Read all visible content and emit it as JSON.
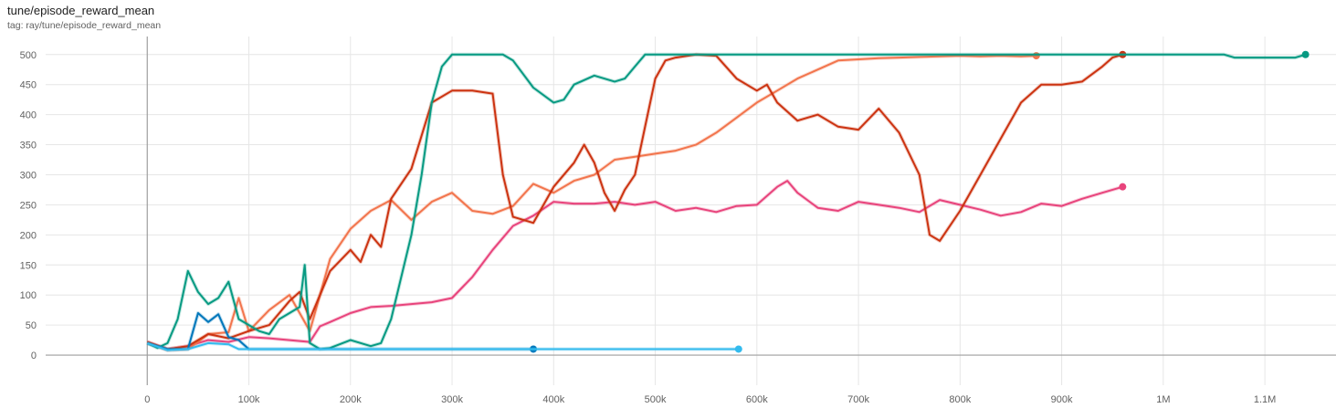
{
  "header": {
    "title": "tune/episode_reward_mean",
    "tag": "tag: ray/tune/episode_reward_mean"
  },
  "chart_data": {
    "type": "line",
    "title": "tune/episode_reward_mean",
    "xlabel": "",
    "ylabel": "",
    "xlim": [
      -100000,
      1170000
    ],
    "ylim": [
      -50,
      530
    ],
    "grid": true,
    "legend": "none",
    "x_ticks": [
      {
        "value": 0,
        "label": "0"
      },
      {
        "value": 100000,
        "label": "100k"
      },
      {
        "value": 200000,
        "label": "200k"
      },
      {
        "value": 300000,
        "label": "300k"
      },
      {
        "value": 400000,
        "label": "400k"
      },
      {
        "value": 500000,
        "label": "500k"
      },
      {
        "value": 600000,
        "label": "600k"
      },
      {
        "value": 700000,
        "label": "700k"
      },
      {
        "value": 800000,
        "label": "800k"
      },
      {
        "value": 900000,
        "label": "900k"
      },
      {
        "value": 1000000,
        "label": "1M"
      },
      {
        "value": 1100000,
        "label": "1.1M"
      }
    ],
    "y_ticks": [
      {
        "value": 0,
        "label": "0"
      },
      {
        "value": 50,
        "label": "50"
      },
      {
        "value": 100,
        "label": "100"
      },
      {
        "value": 150,
        "label": "150"
      },
      {
        "value": 200,
        "label": "200"
      },
      {
        "value": 250,
        "label": "250"
      },
      {
        "value": 300,
        "label": "300"
      },
      {
        "value": 350,
        "label": "350"
      },
      {
        "value": 400,
        "label": "400"
      },
      {
        "value": 450,
        "label": "450"
      },
      {
        "value": 500,
        "label": "500"
      }
    ],
    "series": [
      {
        "color": "#e8447c",
        "x": [
          0,
          20000,
          40000,
          60000,
          80000,
          100000,
          120000,
          140000,
          160000,
          170000,
          180000,
          200000,
          220000,
          240000,
          260000,
          280000,
          300000,
          320000,
          340000,
          360000,
          380000,
          400000,
          420000,
          440000,
          460000,
          480000,
          500000,
          520000,
          540000,
          560000,
          580000,
          600000,
          620000,
          630000,
          640000,
          660000,
          680000,
          700000,
          720000,
          740000,
          760000,
          780000,
          800000,
          820000,
          840000,
          860000,
          880000,
          900000,
          920000,
          940000,
          960000
        ],
        "y": [
          22,
          10,
          15,
          25,
          22,
          30,
          28,
          25,
          22,
          48,
          55,
          70,
          80,
          82,
          85,
          88,
          95,
          130,
          175,
          215,
          232,
          255,
          252,
          252,
          255,
          250,
          255,
          240,
          245,
          238,
          248,
          250,
          280,
          290,
          270,
          245,
          240,
          255,
          250,
          245,
          238,
          258,
          250,
          242,
          232,
          238,
          252,
          248,
          260,
          270,
          280
        ]
      },
      {
        "color": "#f2754d",
        "x": [
          0,
          20000,
          40000,
          50000,
          60000,
          80000,
          90000,
          100000,
          120000,
          140000,
          160000,
          180000,
          200000,
          220000,
          240000,
          260000,
          280000,
          300000,
          320000,
          340000,
          360000,
          380000,
          400000,
          420000,
          440000,
          460000,
          480000,
          500000,
          520000,
          540000,
          560000,
          580000,
          600000,
          620000,
          640000,
          660000,
          680000,
          700000,
          720000,
          740000,
          760000,
          780000,
          800000,
          820000,
          840000,
          860000,
          875000
        ],
        "y": [
          20,
          8,
          10,
          22,
          35,
          38,
          95,
          40,
          75,
          100,
          40,
          160,
          210,
          240,
          258,
          225,
          255,
          270,
          240,
          235,
          248,
          285,
          270,
          290,
          300,
          325,
          330,
          335,
          340,
          350,
          370,
          395,
          420,
          440,
          460,
          475,
          490,
          492,
          494,
          495,
          496,
          497,
          498,
          497,
          498,
          497,
          498
        ]
      },
      {
        "color": "#cc3311",
        "x": [
          0,
          20000,
          40000,
          60000,
          80000,
          100000,
          120000,
          140000,
          150000,
          160000,
          180000,
          200000,
          210000,
          220000,
          230000,
          240000,
          260000,
          280000,
          300000,
          320000,
          340000,
          350000,
          360000,
          380000,
          400000,
          420000,
          430000,
          440000,
          450000,
          460000,
          470000,
          480000,
          490000,
          500000,
          510000,
          520000,
          540000,
          560000,
          580000,
          600000,
          610000,
          620000,
          640000,
          660000,
          680000,
          700000,
          720000,
          740000,
          760000,
          770000,
          780000,
          800000,
          820000,
          840000,
          860000,
          880000,
          900000,
          920000,
          940000,
          950000,
          960000
        ],
        "y": [
          22,
          10,
          15,
          35,
          28,
          40,
          50,
          90,
          105,
          60,
          140,
          175,
          155,
          200,
          180,
          260,
          310,
          420,
          440,
          440,
          435,
          300,
          230,
          220,
          280,
          320,
          350,
          320,
          270,
          240,
          275,
          300,
          380,
          460,
          490,
          495,
          500,
          498,
          460,
          440,
          450,
          420,
          390,
          400,
          380,
          375,
          410,
          370,
          300,
          200,
          190,
          240,
          300,
          360,
          420,
          450,
          450,
          455,
          480,
          495,
          500
        ]
      },
      {
        "color": "#079a82",
        "x": [
          0,
          10000,
          20000,
          30000,
          40000,
          50000,
          60000,
          70000,
          80000,
          90000,
          100000,
          110000,
          120000,
          130000,
          140000,
          150000,
          155000,
          160000,
          170000,
          180000,
          200000,
          220000,
          230000,
          240000,
          260000,
          270000,
          280000,
          290000,
          300000,
          320000,
          340000,
          350000,
          360000,
          380000,
          400000,
          410000,
          420000,
          440000,
          460000,
          470000,
          480000,
          490000,
          500000,
          550000,
          600000,
          700000,
          800000,
          900000,
          1000000,
          1060000,
          1070000,
          1100000,
          1130000,
          1140000
        ],
        "y": [
          20,
          12,
          20,
          60,
          140,
          105,
          85,
          95,
          122,
          60,
          50,
          40,
          35,
          60,
          70,
          80,
          150,
          20,
          10,
          12,
          25,
          15,
          20,
          60,
          200,
          300,
          420,
          480,
          500,
          500,
          500,
          500,
          490,
          445,
          420,
          425,
          450,
          465,
          455,
          460,
          480,
          500,
          500,
          500,
          500,
          500,
          500,
          500,
          500,
          500,
          495,
          495,
          495,
          500
        ]
      },
      {
        "color": "#0077bb",
        "x": [
          0,
          20000,
          40000,
          50000,
          60000,
          70000,
          80000,
          90000,
          100000,
          150000,
          200000,
          250000,
          300000,
          350000,
          380000
        ],
        "y": [
          20,
          10,
          10,
          70,
          55,
          68,
          30,
          25,
          10,
          10,
          10,
          10,
          10,
          10,
          10
        ]
      },
      {
        "color": "#33bbee",
        "x": [
          0,
          20000,
          40000,
          60000,
          80000,
          90000,
          100000,
          200000,
          300000,
          400000,
          500000,
          582000
        ],
        "y": [
          20,
          8,
          10,
          20,
          18,
          10,
          10,
          10,
          10,
          10,
          10,
          10
        ]
      }
    ]
  }
}
